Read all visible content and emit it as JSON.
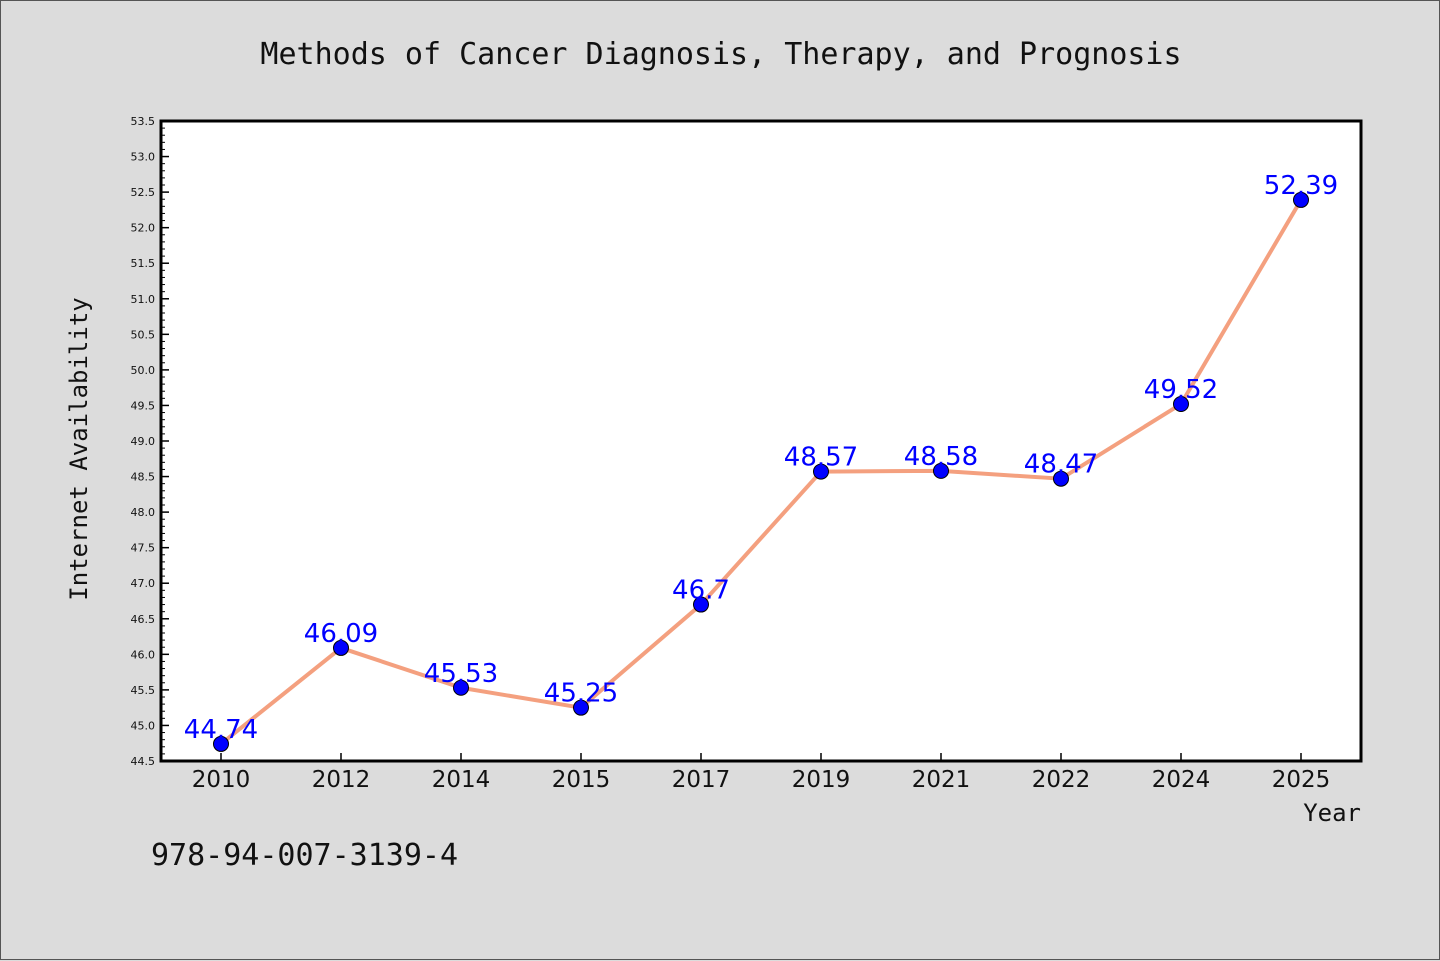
{
  "chart_data": {
    "type": "line",
    "title": "Methods of Cancer Diagnosis, Therapy, and Prognosis",
    "xlabel": "Year",
    "ylabel": "Internet Availability",
    "categories": [
      "2010",
      "2012",
      "2014",
      "2015",
      "2017",
      "2019",
      "2021",
      "2022",
      "2024",
      "2025"
    ],
    "series": [
      {
        "values": [
          44.74,
          46.09,
          45.53,
          45.25,
          46.7,
          48.57,
          48.58,
          48.47,
          49.52,
          52.39
        ],
        "labels": [
          "44.74",
          "46.09",
          "45.53",
          "45.25",
          "46.7",
          "48.57",
          "48.58",
          "48.47",
          "49.52",
          "52.39"
        ]
      }
    ],
    "ylim": [
      44.5,
      53.5
    ],
    "ytick_step": 0.5,
    "yticks": [
      "44.5",
      "45.0",
      "45.5",
      "46.0",
      "46.5",
      "47.0",
      "47.5",
      "48.0",
      "48.5",
      "49.0",
      "49.5",
      "50.0",
      "50.5",
      "51.0",
      "51.5",
      "52.0",
      "52.5",
      "53.0",
      "53.5"
    ],
    "grid": false,
    "legend": "none",
    "colors": {
      "line": "#f4a07f",
      "marker": "#0000ff",
      "data_label": "#0000ff",
      "background": "#dcdcdc",
      "plot_background": "#ffffff"
    }
  },
  "footer": {
    "isbn": "978-94-007-3139-4"
  }
}
